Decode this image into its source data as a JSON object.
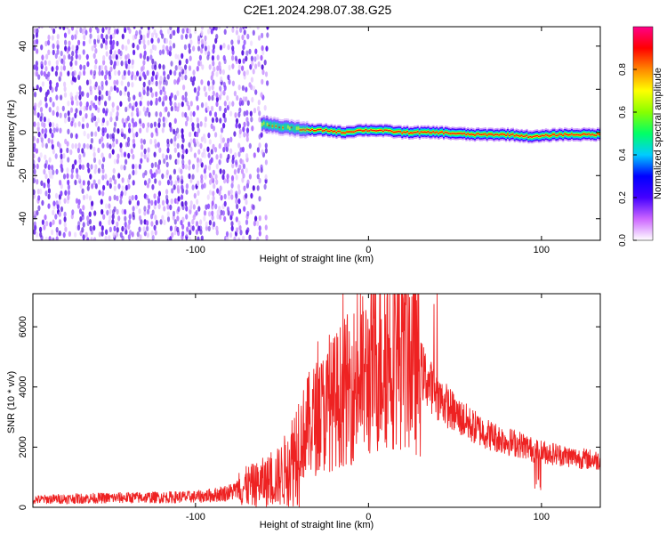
{
  "title": "C2E1.2024.298.07.38.G25",
  "chart_data": [
    {
      "type": "heatmap",
      "xlabel": "Height of straight line (km)",
      "ylabel": "Frequency (Hz)",
      "xlim": [
        -194,
        134
      ],
      "ylim": [
        -50,
        49
      ],
      "xticks": [
        -100,
        0,
        100
      ],
      "xtick_labels": [
        "-100",
        "0",
        "100"
      ],
      "yticks": [
        -40,
        -20,
        0,
        20,
        40
      ],
      "ytick_labels": [
        "-40",
        "-20",
        "0",
        "20",
        "40"
      ],
      "colorbar": {
        "label": "Normalized spectral amplitude",
        "range": [
          0,
          1
        ],
        "ticks": [
          0,
          0.2,
          0.4,
          0.6,
          0.8
        ],
        "tick_labels": [
          "0.0",
          "0.2",
          "0.4",
          "0.6",
          "0.8"
        ],
        "colors": [
          "#ffffff",
          "#cc66ff",
          "#4400ff",
          "#0000ff",
          "#00ccff",
          "#00ff66",
          "#88ff00",
          "#ffff00",
          "#ff8800",
          "#ff0000",
          "#ff0088"
        ]
      },
      "noise_region": {
        "x": [
          -194,
          -58
        ],
        "y": [
          -50,
          49
        ]
      },
      "signal_track": [
        {
          "x": -62,
          "y": 4
        },
        {
          "x": -55,
          "y": 3
        },
        {
          "x": -45,
          "y": 2
        },
        {
          "x": -35,
          "y": 1
        },
        {
          "x": -25,
          "y": 1
        },
        {
          "x": -15,
          "y": 0
        },
        {
          "x": -5,
          "y": 1
        },
        {
          "x": 5,
          "y": 1
        },
        {
          "x": 20,
          "y": 0
        },
        {
          "x": 40,
          "y": 0
        },
        {
          "x": 60,
          "y": -1
        },
        {
          "x": 80,
          "y": -1
        },
        {
          "x": 95,
          "y": -2
        },
        {
          "x": 110,
          "y": -1
        },
        {
          "x": 134,
          "y": -1
        }
      ],
      "grid": false
    },
    {
      "type": "line",
      "xlabel": "Height of straight line (km)",
      "ylabel": "SNR (10 * v/v)",
      "xlim": [
        -194,
        134
      ],
      "ylim": [
        0,
        7100
      ],
      "xticks": [
        -100,
        0,
        100
      ],
      "xtick_labels": [
        "-100",
        "0",
        "100"
      ],
      "yticks": [
        0,
        2000,
        4000,
        6000
      ],
      "ytick_labels": [
        "0",
        "2000",
        "4000",
        "6000"
      ],
      "color": "#ee2222",
      "series": [
        {
          "x": [
            -194,
            -180,
            -160,
            -140,
            -120,
            -100,
            -90,
            -80,
            -75,
            -70,
            -65,
            -60,
            -55,
            -50,
            -45,
            -40,
            -35,
            -30,
            -25,
            -20,
            -15,
            -10,
            -5,
            0,
            5,
            10,
            15,
            20,
            25,
            30,
            35,
            40,
            45,
            50,
            60,
            70,
            80,
            90,
            95,
            100,
            105,
            110,
            120,
            134
          ],
          "values": [
            250,
            280,
            300,
            320,
            330,
            350,
            400,
            500,
            600,
            700,
            750,
            850,
            900,
            1100,
            1500,
            2200,
            2700,
            3000,
            3200,
            3500,
            3800,
            4000,
            4300,
            4400,
            4800,
            5200,
            5400,
            5300,
            5000,
            4600,
            4100,
            3700,
            3400,
            3100,
            2700,
            2400,
            2200,
            2050,
            1900,
            1850,
            1800,
            1750,
            1650,
            1550
          ]
        }
      ],
      "grid": false
    }
  ]
}
